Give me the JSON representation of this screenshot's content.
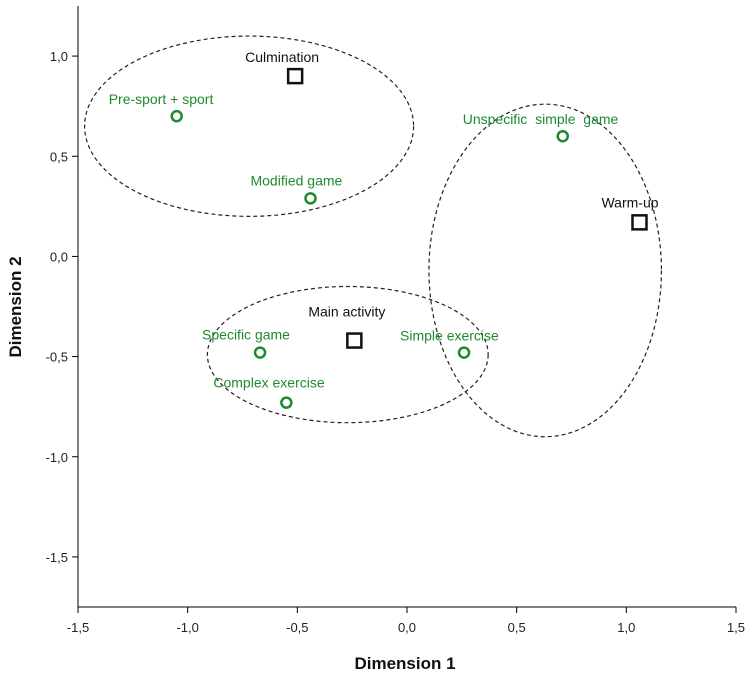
{
  "chart_data": {
    "type": "scatter",
    "title": "",
    "xlabel": "Dimension 1",
    "ylabel": "Dimension 2",
    "xlim": [
      -1.5,
      1.5
    ],
    "ylim": [
      -1.75,
      1.25
    ],
    "xticks": [
      -1.5,
      -1.0,
      -0.5,
      0.0,
      0.5,
      1.0,
      1.5
    ],
    "yticks": [
      -1.5,
      -1.0,
      -0.5,
      0.0,
      0.5,
      1.0
    ],
    "xtick_labels": [
      "-1,5",
      "-1,0",
      "-0,5",
      "0,0",
      "0,5",
      "1,0",
      "1,5"
    ],
    "ytick_labels": [
      "-1,5",
      "-1,0",
      "-0,5",
      "0,0",
      "0,5",
      "1,0"
    ],
    "grid": false,
    "colors": {
      "circle_series": "#1e8a2e",
      "square_series": "#111111",
      "ellipse": "#222222"
    },
    "series": [
      {
        "marker": "square",
        "points": [
          {
            "label": "Culmination",
            "x": -0.51,
            "y": 0.9
          },
          {
            "label": "Warm-up",
            "x": 1.06,
            "y": 0.17
          },
          {
            "label": "Main activity",
            "x": -0.24,
            "y": -0.42
          }
        ]
      },
      {
        "marker": "circle",
        "points": [
          {
            "label": "Pre-sport + sport",
            "x": -1.05,
            "y": 0.7
          },
          {
            "label": "Modified game",
            "x": -0.44,
            "y": 0.29
          },
          {
            "label": "Unspecific  simple  game",
            "x": 0.71,
            "y": 0.6
          },
          {
            "label": "Specific game",
            "x": -0.67,
            "y": -0.48
          },
          {
            "label": "Simple exercise",
            "x": 0.26,
            "y": -0.48
          },
          {
            "label": "Complex exercise",
            "x": -0.55,
            "y": -0.73
          }
        ]
      }
    ],
    "annotations": {
      "ellipses": [
        {
          "cx": -0.72,
          "cy": 0.65,
          "rx": 0.75,
          "ry": 0.45
        },
        {
          "cx": 0.63,
          "cy": -0.07,
          "rx": 0.53,
          "ry": 0.83
        },
        {
          "cx": -0.27,
          "cy": -0.49,
          "rx": 0.64,
          "ry": 0.34
        }
      ]
    }
  }
}
